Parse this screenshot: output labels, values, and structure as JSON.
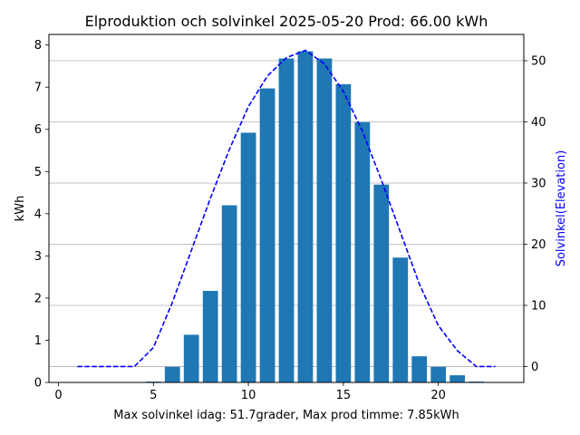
{
  "chart_data": {
    "type": "bar",
    "title": "Elproduktion och solvinkel 2025-05-20 Prod: 66.00 kWh",
    "xlabel": "Max solvinkel idag: 51.7grader, Max prod timme: 7.85kWh",
    "ylabel": "kWh",
    "y2label": "Solvinkel(Elevation)",
    "xlim": [
      -0.5,
      24.5
    ],
    "ylim": [
      0,
      8.25
    ],
    "y2lim": [
      -2.6,
      54.3
    ],
    "xticks": [
      0,
      5,
      10,
      15,
      20
    ],
    "yticks": [
      0,
      1,
      2,
      3,
      4,
      5,
      6,
      7,
      8
    ],
    "y2ticks": [
      0,
      10,
      20,
      30,
      40,
      50
    ],
    "grid": "right-axis horizontal lines",
    "bars": {
      "name": "kWh",
      "color": "#1f77b4",
      "x": [
        5,
        6,
        7,
        8,
        9,
        10,
        11,
        12,
        13,
        14,
        15,
        16,
        17,
        18,
        19,
        20,
        21,
        22
      ],
      "values": [
        0.02,
        0.37,
        1.13,
        2.17,
        4.2,
        5.92,
        6.97,
        7.68,
        7.85,
        7.68,
        7.07,
        6.17,
        4.69,
        2.96,
        0.62,
        0.37,
        0.17,
        0.02
      ]
    },
    "line": {
      "name": "Solvinkel",
      "color": "#0000ff",
      "style": "dashed",
      "axis": "right",
      "x": [
        1,
        2,
        3,
        4,
        5,
        6,
        7,
        8,
        9,
        10,
        11,
        12,
        13,
        14,
        15,
        16,
        17,
        18,
        19,
        20,
        21,
        22,
        23
      ],
      "values": [
        0,
        0,
        0,
        0,
        3.1,
        10.5,
        19,
        27.5,
        35.5,
        42.5,
        47.5,
        50.5,
        51.7,
        49.5,
        45,
        38.5,
        30.5,
        22,
        13.5,
        6.7,
        2.6,
        0,
        0
      ]
    }
  }
}
